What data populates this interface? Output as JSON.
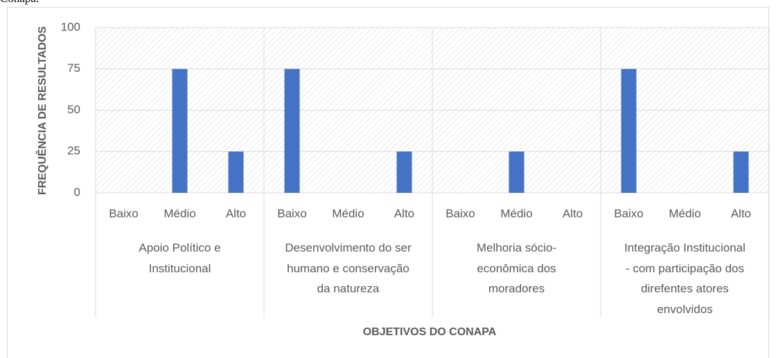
{
  "caption": "Conapa.",
  "chart_data": {
    "type": "bar",
    "categories": [
      "Baixo",
      "Médio",
      "Alto",
      "Baixo",
      "Médio",
      "Alto",
      "Baixo",
      "Médio",
      "Alto",
      "Baixo",
      "Médio",
      "Alto"
    ],
    "groups": [
      "Apoio Político e\nInstitucional",
      "Desenvolvimento do ser\nhumano e conservação\nda natureza",
      "Melhoria sócio-\neconômica dos\nmoradores",
      "Integração Institucional\n- com participação dos\ndirefentes atores\nenvolvidos"
    ],
    "values": [
      0,
      75,
      25,
      75,
      0,
      25,
      0,
      25,
      0,
      75,
      0,
      25
    ],
    "color": "#4472c4",
    "ylim": [
      0,
      100
    ],
    "yticks": [
      0,
      25,
      50,
      75,
      100
    ],
    "grid": true,
    "ylabel": "FREQUÊNCIA DE RESULTADOS",
    "xlabel": "OBJETIVOS DO CONAPA"
  }
}
